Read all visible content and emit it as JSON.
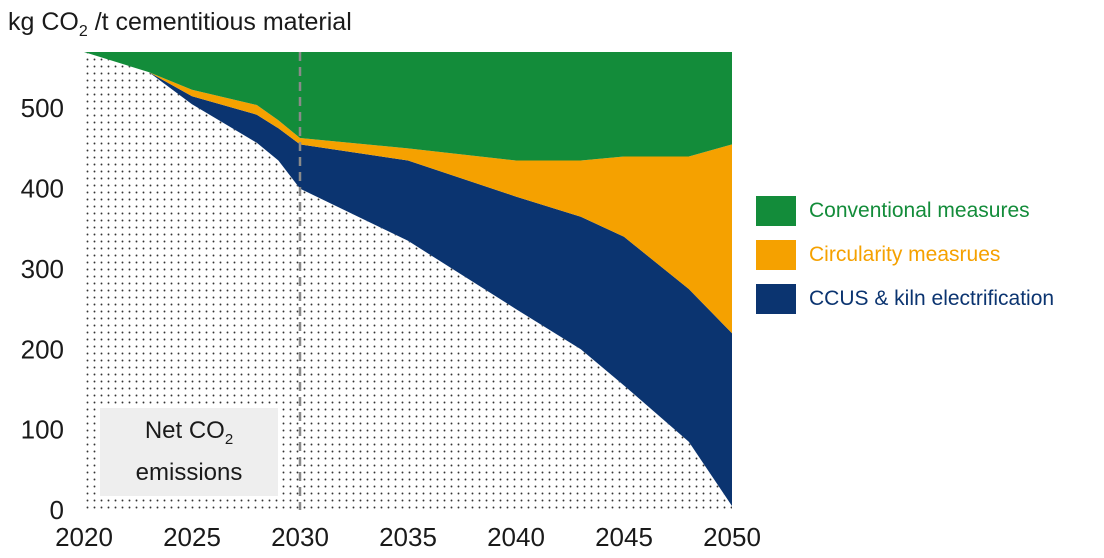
{
  "y_unit_label": {
    "pre": "kg CO",
    "sub": "2",
    "post": " /t cementitious material"
  },
  "net_label": {
    "line1_pre": "Net CO",
    "line1_sub": "2",
    "line2": "emissions"
  },
  "legend": [
    {
      "label": "Conventional measures",
      "color": "#138c3a"
    },
    {
      "label": "Circularity measrues",
      "color": "#f5a100"
    },
    {
      "label": "CCUS & kiln electrification",
      "color": "#0b3470"
    }
  ],
  "chart_data": {
    "type": "area",
    "stacked": true,
    "x": [
      2020,
      2023,
      2025,
      2028,
      2029,
      2030,
      2035,
      2040,
      2043,
      2045,
      2048,
      2050
    ],
    "series": [
      {
        "name": "Net CO2 emissions",
        "pattern": "dotted",
        "values": [
          570,
          545,
          505,
          457,
          435,
          400,
          335,
          250,
          200,
          155,
          85,
          5
        ]
      },
      {
        "name": "CCUS & kiln electrification",
        "color": "#0b3470",
        "values": [
          0,
          0,
          10,
          35,
          40,
          55,
          100,
          140,
          165,
          185,
          190,
          215
        ]
      },
      {
        "name": "Circularity measrues",
        "color": "#f5a100",
        "values": [
          0,
          0,
          8,
          12,
          10,
          8,
          15,
          45,
          70,
          100,
          165,
          235
        ]
      },
      {
        "name": "Conventional measures",
        "color": "#138c3a",
        "values": [
          0,
          25,
          47,
          66,
          85,
          107,
          120,
          135,
          135,
          130,
          130,
          115
        ]
      }
    ],
    "xlim": [
      2020,
      2050
    ],
    "ylim": [
      0,
      570
    ],
    "x_ticks": [
      2020,
      2025,
      2030,
      2035,
      2040,
      2045,
      2050
    ],
    "y_ticks": [
      0,
      100,
      200,
      300,
      400,
      500
    ],
    "marker_line_x": 2030,
    "legend_position": "right"
  }
}
